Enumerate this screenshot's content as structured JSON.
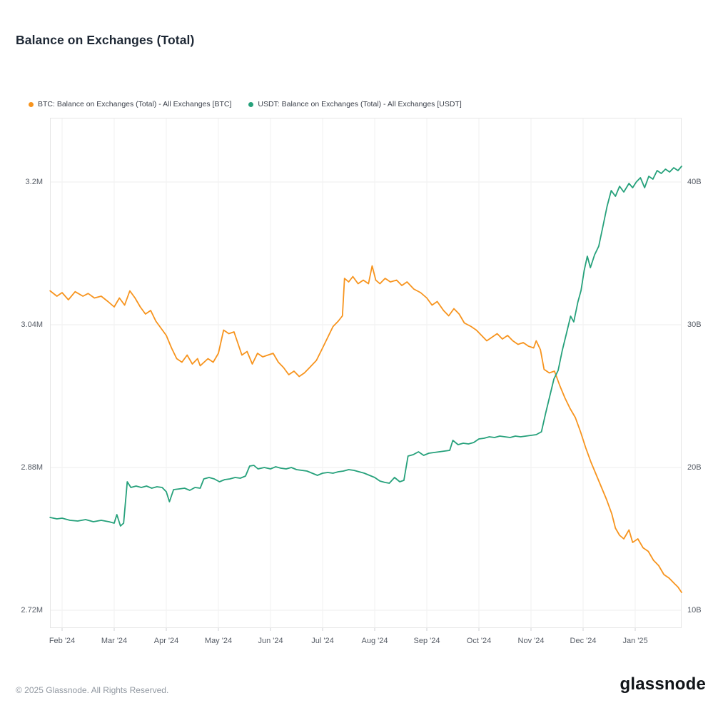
{
  "page": {
    "title": "Balance on Exchanges (Total)",
    "footer_copyright": "© 2025 Glassnode. All Rights Reserved.",
    "brand": "glassnode"
  },
  "legend": [
    {
      "label": "BTC: Balance on Exchanges (Total) - All Exchanges [BTC]",
      "color": "#f7941e"
    },
    {
      "label": "USDT: Balance on Exchanges (Total) - All Exchanges [USDT]",
      "color": "#26a17b"
    }
  ],
  "chart_data": {
    "type": "line",
    "title": "Balance on Exchanges (Total)",
    "grid": "on",
    "legend_position": "top-left",
    "x_axis": {
      "min": -0.233,
      "max": 11.89,
      "unit": "months since Feb 2024",
      "tick_positions": [
        0,
        1,
        2,
        3,
        4,
        5,
        6,
        7,
        8,
        9,
        10,
        11
      ],
      "tick_labels": [
        "Feb '24",
        "Mar '24",
        "Apr '24",
        "May '24",
        "Jun '24",
        "Jul '24",
        "Aug '24",
        "Sep '24",
        "Oct '24",
        "Nov '24",
        "Dec '24",
        "Jan '25"
      ]
    },
    "y_left": {
      "min": 2.7,
      "max": 3.272,
      "unit": "M BTC",
      "tick_values": [
        3.2,
        3.04,
        2.88,
        2.72
      ],
      "tick_labels": [
        "3.2M",
        "3.04M",
        "2.88M",
        "2.72M"
      ]
    },
    "y_right": {
      "min": 8.75,
      "max": 44.5,
      "unit": "B USDT",
      "tick_values": [
        40,
        30,
        20,
        10
      ],
      "tick_labels": [
        "40B",
        "30B",
        "20B",
        "10B"
      ]
    },
    "series": [
      {
        "id": "btc",
        "name": "BTC: Balance on Exchanges (Total) - All Exchanges [BTC]",
        "axis": "left",
        "color": "#f7941e",
        "points": [
          [
            -0.23,
            3.078
          ],
          [
            -0.1,
            3.072
          ],
          [
            0.0,
            3.076
          ],
          [
            0.12,
            3.068
          ],
          [
            0.25,
            3.077
          ],
          [
            0.4,
            3.072
          ],
          [
            0.5,
            3.075
          ],
          [
            0.62,
            3.07
          ],
          [
            0.75,
            3.072
          ],
          [
            0.88,
            3.066
          ],
          [
            1.0,
            3.06
          ],
          [
            1.1,
            3.07
          ],
          [
            1.2,
            3.062
          ],
          [
            1.3,
            3.078
          ],
          [
            1.4,
            3.07
          ],
          [
            1.5,
            3.06
          ],
          [
            1.6,
            3.052
          ],
          [
            1.7,
            3.056
          ],
          [
            1.8,
            3.044
          ],
          [
            1.9,
            3.036
          ],
          [
            2.0,
            3.028
          ],
          [
            2.1,
            3.014
          ],
          [
            2.2,
            3.002
          ],
          [
            2.3,
            2.998
          ],
          [
            2.4,
            3.006
          ],
          [
            2.5,
            2.996
          ],
          [
            2.6,
            3.002
          ],
          [
            2.65,
            2.994
          ],
          [
            2.8,
            3.002
          ],
          [
            2.9,
            2.998
          ],
          [
            3.0,
            3.008
          ],
          [
            3.1,
            3.034
          ],
          [
            3.2,
            3.03
          ],
          [
            3.3,
            3.032
          ],
          [
            3.45,
            3.006
          ],
          [
            3.55,
            3.01
          ],
          [
            3.65,
            2.996
          ],
          [
            3.75,
            3.008
          ],
          [
            3.85,
            3.004
          ],
          [
            3.95,
            3.006
          ],
          [
            4.05,
            3.008
          ],
          [
            4.15,
            2.998
          ],
          [
            4.25,
            2.992
          ],
          [
            4.35,
            2.984
          ],
          [
            4.45,
            2.988
          ],
          [
            4.55,
            2.982
          ],
          [
            4.65,
            2.986
          ],
          [
            4.75,
            2.992
          ],
          [
            4.88,
            3.0
          ],
          [
            5.0,
            3.014
          ],
          [
            5.1,
            3.026
          ],
          [
            5.2,
            3.038
          ],
          [
            5.3,
            3.044
          ],
          [
            5.38,
            3.05
          ],
          [
            5.42,
            3.092
          ],
          [
            5.5,
            3.088
          ],
          [
            5.58,
            3.094
          ],
          [
            5.68,
            3.086
          ],
          [
            5.78,
            3.09
          ],
          [
            5.88,
            3.086
          ],
          [
            5.95,
            3.106
          ],
          [
            6.02,
            3.09
          ],
          [
            6.1,
            3.086
          ],
          [
            6.2,
            3.092
          ],
          [
            6.3,
            3.088
          ],
          [
            6.42,
            3.09
          ],
          [
            6.52,
            3.084
          ],
          [
            6.62,
            3.088
          ],
          [
            6.75,
            3.08
          ],
          [
            6.88,
            3.076
          ],
          [
            7.0,
            3.07
          ],
          [
            7.1,
            3.062
          ],
          [
            7.2,
            3.066
          ],
          [
            7.32,
            3.056
          ],
          [
            7.42,
            3.05
          ],
          [
            7.52,
            3.058
          ],
          [
            7.62,
            3.052
          ],
          [
            7.72,
            3.042
          ],
          [
            7.85,
            3.038
          ],
          [
            7.95,
            3.034
          ],
          [
            8.05,
            3.028
          ],
          [
            8.15,
            3.022
          ],
          [
            8.25,
            3.026
          ],
          [
            8.35,
            3.03
          ],
          [
            8.45,
            3.024
          ],
          [
            8.55,
            3.028
          ],
          [
            8.65,
            3.022
          ],
          [
            8.75,
            3.018
          ],
          [
            8.85,
            3.02
          ],
          [
            8.95,
            3.016
          ],
          [
            9.05,
            3.014
          ],
          [
            9.1,
            3.022
          ],
          [
            9.18,
            3.012
          ],
          [
            9.25,
            2.99
          ],
          [
            9.35,
            2.986
          ],
          [
            9.45,
            2.988
          ],
          [
            9.55,
            2.972
          ],
          [
            9.65,
            2.958
          ],
          [
            9.75,
            2.946
          ],
          [
            9.85,
            2.936
          ],
          [
            9.95,
            2.92
          ],
          [
            10.05,
            2.902
          ],
          [
            10.15,
            2.886
          ],
          [
            10.25,
            2.872
          ],
          [
            10.35,
            2.858
          ],
          [
            10.45,
            2.844
          ],
          [
            10.55,
            2.828
          ],
          [
            10.62,
            2.812
          ],
          [
            10.7,
            2.804
          ],
          [
            10.78,
            2.8
          ],
          [
            10.88,
            2.81
          ],
          [
            10.95,
            2.796
          ],
          [
            11.05,
            2.8
          ],
          [
            11.15,
            2.79
          ],
          [
            11.25,
            2.786
          ],
          [
            11.35,
            2.776
          ],
          [
            11.45,
            2.77
          ],
          [
            11.55,
            2.76
          ],
          [
            11.65,
            2.756
          ],
          [
            11.75,
            2.75
          ],
          [
            11.82,
            2.746
          ],
          [
            11.89,
            2.74
          ]
        ]
      },
      {
        "id": "usdt",
        "name": "USDT: Balance on Exchanges (Total) - All Exchanges [USDT]",
        "axis": "right",
        "color": "#26a17b",
        "points": [
          [
            -0.23,
            16.5
          ],
          [
            -0.1,
            16.4
          ],
          [
            0.0,
            16.45
          ],
          [
            0.15,
            16.3
          ],
          [
            0.3,
            16.25
          ],
          [
            0.45,
            16.35
          ],
          [
            0.6,
            16.2
          ],
          [
            0.75,
            16.3
          ],
          [
            0.9,
            16.2
          ],
          [
            1.0,
            16.1
          ],
          [
            1.05,
            16.7
          ],
          [
            1.12,
            15.9
          ],
          [
            1.18,
            16.1
          ],
          [
            1.25,
            19.0
          ],
          [
            1.32,
            18.6
          ],
          [
            1.42,
            18.7
          ],
          [
            1.52,
            18.6
          ],
          [
            1.62,
            18.7
          ],
          [
            1.72,
            18.55
          ],
          [
            1.82,
            18.65
          ],
          [
            1.92,
            18.6
          ],
          [
            2.0,
            18.3
          ],
          [
            2.06,
            17.6
          ],
          [
            2.14,
            18.45
          ],
          [
            2.25,
            18.5
          ],
          [
            2.35,
            18.55
          ],
          [
            2.45,
            18.4
          ],
          [
            2.55,
            18.6
          ],
          [
            2.65,
            18.55
          ],
          [
            2.72,
            19.2
          ],
          [
            2.82,
            19.3
          ],
          [
            2.92,
            19.2
          ],
          [
            3.02,
            19.0
          ],
          [
            3.12,
            19.15
          ],
          [
            3.22,
            19.2
          ],
          [
            3.32,
            19.3
          ],
          [
            3.42,
            19.25
          ],
          [
            3.52,
            19.4
          ],
          [
            3.6,
            20.1
          ],
          [
            3.68,
            20.15
          ],
          [
            3.76,
            19.9
          ],
          [
            3.88,
            20.0
          ],
          [
            4.0,
            19.9
          ],
          [
            4.1,
            20.05
          ],
          [
            4.2,
            19.95
          ],
          [
            4.3,
            19.9
          ],
          [
            4.4,
            20.0
          ],
          [
            4.5,
            19.85
          ],
          [
            4.6,
            19.8
          ],
          [
            4.7,
            19.75
          ],
          [
            4.8,
            19.6
          ],
          [
            4.9,
            19.45
          ],
          [
            5.0,
            19.6
          ],
          [
            5.1,
            19.65
          ],
          [
            5.2,
            19.6
          ],
          [
            5.3,
            19.7
          ],
          [
            5.4,
            19.75
          ],
          [
            5.5,
            19.85
          ],
          [
            5.6,
            19.8
          ],
          [
            5.7,
            19.7
          ],
          [
            5.8,
            19.6
          ],
          [
            5.9,
            19.45
          ],
          [
            6.0,
            19.3
          ],
          [
            6.1,
            19.05
          ],
          [
            6.2,
            18.95
          ],
          [
            6.28,
            18.9
          ],
          [
            6.38,
            19.3
          ],
          [
            6.48,
            19.0
          ],
          [
            6.56,
            19.1
          ],
          [
            6.64,
            20.8
          ],
          [
            6.74,
            20.9
          ],
          [
            6.84,
            21.1
          ],
          [
            6.94,
            20.85
          ],
          [
            7.04,
            21.0
          ],
          [
            7.14,
            21.05
          ],
          [
            7.24,
            21.1
          ],
          [
            7.34,
            21.15
          ],
          [
            7.44,
            21.2
          ],
          [
            7.5,
            21.9
          ],
          [
            7.6,
            21.6
          ],
          [
            7.7,
            21.7
          ],
          [
            7.8,
            21.65
          ],
          [
            7.9,
            21.75
          ],
          [
            8.0,
            22.0
          ],
          [
            8.1,
            22.05
          ],
          [
            8.2,
            22.15
          ],
          [
            8.3,
            22.1
          ],
          [
            8.4,
            22.2
          ],
          [
            8.5,
            22.15
          ],
          [
            8.6,
            22.1
          ],
          [
            8.7,
            22.2
          ],
          [
            8.8,
            22.15
          ],
          [
            8.9,
            22.2
          ],
          [
            9.0,
            22.25
          ],
          [
            9.1,
            22.3
          ],
          [
            9.2,
            22.5
          ],
          [
            9.28,
            23.8
          ],
          [
            9.36,
            25.0
          ],
          [
            9.44,
            26.2
          ],
          [
            9.52,
            26.8
          ],
          [
            9.6,
            28.2
          ],
          [
            9.68,
            29.4
          ],
          [
            9.76,
            30.6
          ],
          [
            9.82,
            30.2
          ],
          [
            9.9,
            31.6
          ],
          [
            9.96,
            32.4
          ],
          [
            10.02,
            33.8
          ],
          [
            10.08,
            34.8
          ],
          [
            10.14,
            34.0
          ],
          [
            10.22,
            34.9
          ],
          [
            10.3,
            35.5
          ],
          [
            10.38,
            36.9
          ],
          [
            10.46,
            38.3
          ],
          [
            10.54,
            39.4
          ],
          [
            10.62,
            39.0
          ],
          [
            10.7,
            39.7
          ],
          [
            10.78,
            39.3
          ],
          [
            10.88,
            39.9
          ],
          [
            10.95,
            39.6
          ],
          [
            11.02,
            40.0
          ],
          [
            11.1,
            40.3
          ],
          [
            11.18,
            39.6
          ],
          [
            11.26,
            40.4
          ],
          [
            11.34,
            40.2
          ],
          [
            11.42,
            40.8
          ],
          [
            11.5,
            40.6
          ],
          [
            11.58,
            40.9
          ],
          [
            11.66,
            40.7
          ],
          [
            11.74,
            41.0
          ],
          [
            11.82,
            40.8
          ],
          [
            11.89,
            41.1
          ]
        ]
      }
    ]
  }
}
